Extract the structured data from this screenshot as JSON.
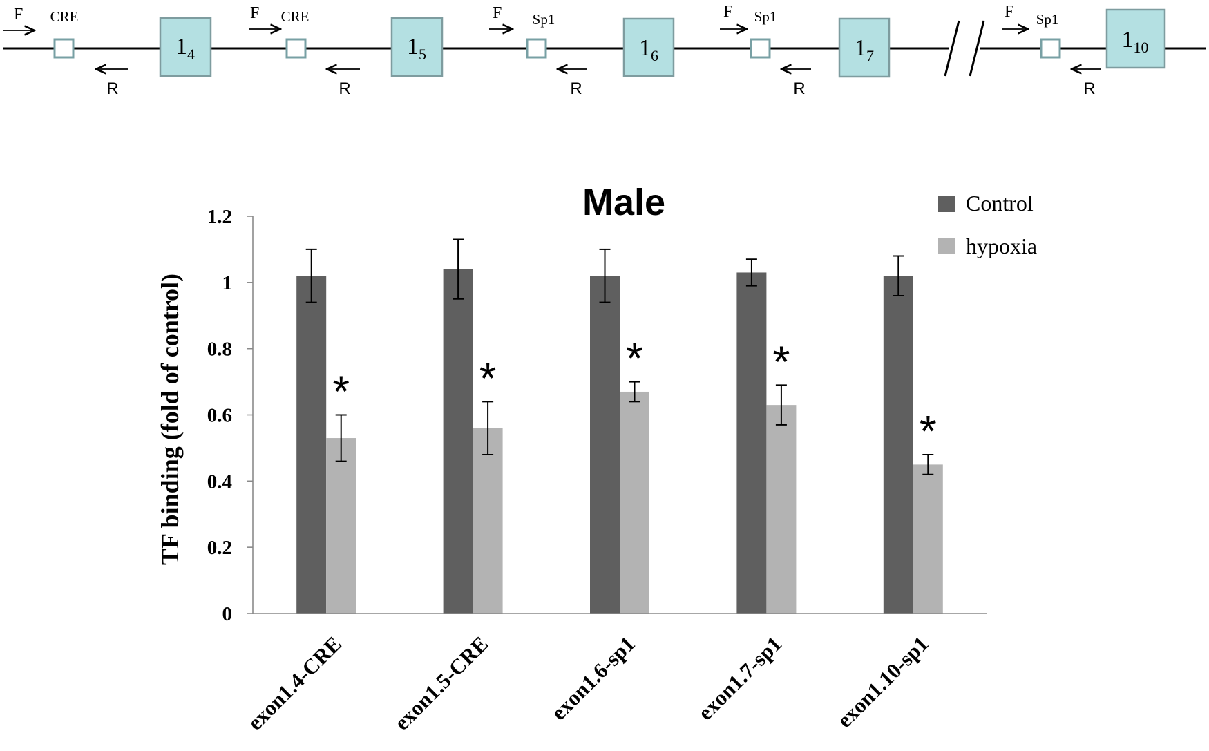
{
  "diagram": {
    "units": [
      {
        "forward": "F",
        "site": "CRE",
        "reverse": "R",
        "exon": "1",
        "sub": "4"
      },
      {
        "forward": "F",
        "site": "CRE",
        "reverse": "R",
        "exon": "1",
        "sub": "5"
      },
      {
        "forward": "F",
        "site": "Sp1",
        "reverse": "R",
        "exon": "1",
        "sub": "6"
      },
      {
        "forward": "F",
        "site": "Sp1",
        "reverse": "R",
        "exon": "1",
        "sub": "7"
      },
      {
        "forward": "F",
        "site": "Sp1",
        "reverse": "R",
        "exon": "1",
        "sub": "10"
      }
    ]
  },
  "chart_data": {
    "type": "bar",
    "title": "Male",
    "xlabel": "",
    "ylabel": "TF binding (fold of control)",
    "ylim": [
      0,
      1.2
    ],
    "yticks": [
      0,
      0.2,
      0.4,
      0.6,
      0.8,
      1,
      1.2
    ],
    "ytick_labels": [
      "0",
      "0.2",
      "0.4",
      "0.6",
      "0.8",
      "1",
      "1.2"
    ],
    "categories": [
      "exon1.4-CRE",
      "exon1.5-CRE",
      "exon1.6-sp1",
      "exon1.7-sp1",
      "exon1.10-sp1"
    ],
    "series": [
      {
        "name": "Control",
        "color": "#5f5f5f",
        "values": [
          1.02,
          1.04,
          1.02,
          1.03,
          1.02
        ],
        "errors": [
          0.08,
          0.09,
          0.08,
          0.04,
          0.06
        ]
      },
      {
        "name": "hypoxia",
        "color": "#b3b3b3",
        "values": [
          0.53,
          0.56,
          0.67,
          0.63,
          0.45
        ],
        "errors": [
          0.07,
          0.08,
          0.03,
          0.06,
          0.03
        ]
      }
    ],
    "significance_marker": "*",
    "significant": [
      true,
      true,
      true,
      true,
      true
    ],
    "legend_position": "top-right",
    "grid": false
  }
}
